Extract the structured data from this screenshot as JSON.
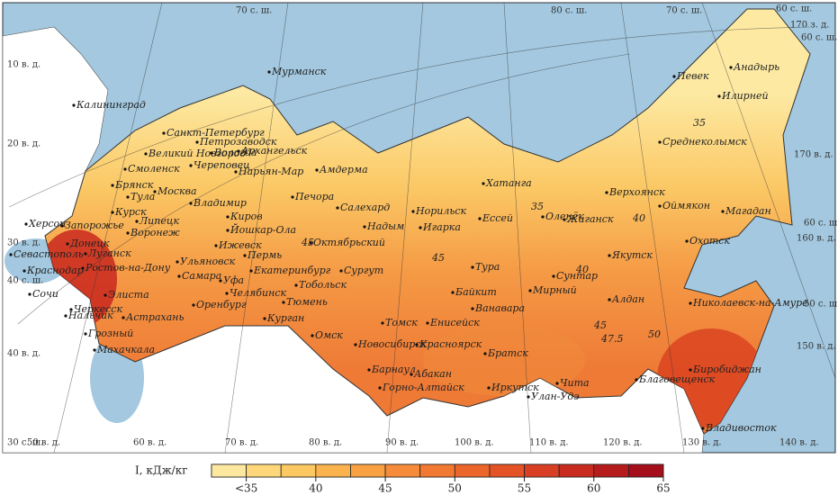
{
  "map": {
    "graticule_labels": [
      "70 с. ш.",
      "80 с. ш.",
      "70 с. ш.",
      "60 с. ш.",
      "170 з. д.",
      "60 с. ш.",
      "10 в. д.",
      "20 в. д.",
      "30 в. д.",
      "40 с. ш.",
      "40 в. д.",
      "30 с. ш.",
      "50 в. д.",
      "60 в. д.",
      "70 в. д.",
      "80 в. д.",
      "90 в. д.",
      "100 в. д.",
      "110 в. д.",
      "120 в. д.",
      "130 в. д.",
      "140 в. д.",
      "170 в. д.",
      "60 с. ш.",
      "160 в. д.",
      "50 с. ш.",
      "150 в. д."
    ],
    "cities": [
      "Мурманск",
      "Калининград",
      "Санкт-Петербург",
      "Петрозаводск",
      "Великий Новгород",
      "Вологда",
      "Череповец",
      "Архангельск",
      "Нарьян-Мар",
      "Амдерма",
      "Смоленск",
      "Брянск",
      "Тула",
      "Москва",
      "Владимир",
      "Курск",
      "Липецк",
      "Воронеж",
      "Киров",
      "Йошкар-Ола",
      "Ижевск",
      "Пермь",
      "Ульяновск",
      "Самара",
      "Екатеринбург",
      "Челябинск",
      "Оренбург",
      "Уфа",
      "Тобольск",
      "Тюмень",
      "Курган",
      "Сургут",
      "Октябрьский",
      "Печора",
      "Салехард",
      "Надым",
      "Норильск",
      "Игарка",
      "Ессей",
      "Хатанга",
      "Оленёк",
      "Жиганск",
      "Верхоянск",
      "Среднеколымск",
      "Певек",
      "Анадырь",
      "Илирней",
      "Оймякон",
      "Магадан",
      "Охотск",
      "Якутск",
      "Сунтар",
      "Мирный",
      "Тура",
      "Байкит",
      "Ванавара",
      "Алдан",
      "Николаевск-на-Амуре",
      "Енисейск",
      "Томск",
      "Омск",
      "Новосибирск",
      "Красноярск",
      "Братск",
      "Барнаул",
      "Абакан",
      "Горно-Алтайск",
      "Иркутск",
      "Улан-Удэ",
      "Чита",
      "Благовещенск",
      "Биробиджан",
      "Владивосток",
      "Херсон",
      "Запорожье",
      "Донецк",
      "Луганск",
      "Ростов-на-Дону",
      "Севастополь",
      "Краснодар",
      "Сочи",
      "Элиста",
      "Черкесск",
      "Нальчик",
      "Астрахань",
      "Грозный",
      "Махачкала"
    ],
    "contour_labels": [
      "45",
      "35",
      "40",
      "45",
      "35",
      "40",
      "45",
      "47.5",
      "50"
    ]
  },
  "legend": {
    "title": "I, кДж/кг",
    "range": [
      32.5,
      65
    ],
    "colors": [
      "#fde8a0",
      "#fdd77a",
      "#fcc861",
      "#fbb34e",
      "#f9a043",
      "#f68c3a",
      "#f27932",
      "#ec652b",
      "#e45226",
      "#d93f22",
      "#c92c1f",
      "#b71c1c",
      "#a50f1b"
    ],
    "ticks": [
      {
        "value": 35,
        "label": "<35"
      },
      40,
      45,
      50,
      55,
      60,
      65
    ]
  }
}
